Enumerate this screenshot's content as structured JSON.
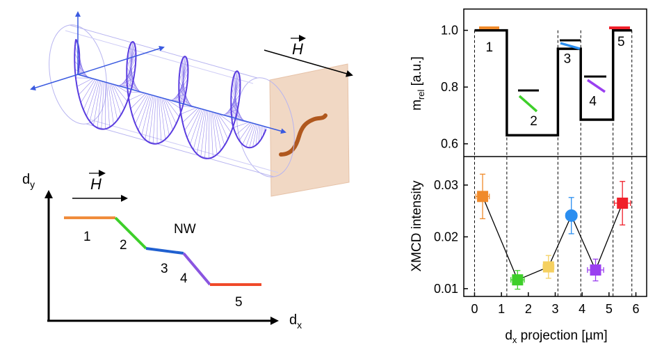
{
  "left_top": {
    "field_label": "H"
  },
  "left_bottom": {
    "y_axis_label": "d",
    "y_axis_sub": "y",
    "x_axis_label": "d",
    "x_axis_sub": "x",
    "field_label": "H",
    "nw_label": "NW",
    "segments": [
      {
        "label": "1",
        "color": "#f08c3c"
      },
      {
        "label": "2",
        "color": "#3ecf2a"
      },
      {
        "label": "3",
        "color": "#2060d0"
      },
      {
        "label": "4",
        "color": "#8a55e0"
      },
      {
        "label": "5",
        "color": "#f04a2a"
      }
    ]
  },
  "chart_data": [
    {
      "type": "line",
      "ylabel_main": "m",
      "ylabel_sub": "rel",
      "ylabel_unit": " [a.u.]",
      "xlim": [
        -0.4,
        6.4
      ],
      "ylim": [
        0.555,
        1.075
      ],
      "yticks": [
        "0.6",
        "0.8",
        "1.0"
      ],
      "ytick_values": [
        0.6,
        0.8,
        1.0
      ],
      "step_x": [
        0,
        1.2,
        1.2,
        3.1,
        3.1,
        3.95,
        3.95,
        5.15,
        5.15,
        5.85
      ],
      "step_y": [
        1.0,
        1.0,
        0.63,
        0.63,
        0.935,
        0.935,
        0.685,
        0.685,
        1.0,
        1.0
      ],
      "region_labels": [
        "1",
        "2",
        "3",
        "4",
        "5"
      ],
      "region_label_x": [
        0.55,
        2.2,
        3.45,
        4.4,
        5.45
      ],
      "region_label_y": [
        0.925,
        0.665,
        0.885,
        0.735,
        0.945
      ],
      "boundaries_x": [
        0,
        1.2,
        3.1,
        3.95,
        5.15,
        5.85
      ]
    },
    {
      "type": "scatter",
      "ylabel": "XMCD intensity",
      "xlabel_main": "d",
      "xlabel_sub": "x",
      "xlabel_rest": "  projection [µm]",
      "xlim": [
        -0.4,
        6.4
      ],
      "ylim": [
        0.0085,
        0.0355
      ],
      "xticks": [
        "0",
        "1",
        "2",
        "3",
        "4",
        "5",
        "6"
      ],
      "xtick_values": [
        0,
        1,
        2,
        3,
        4,
        5,
        6
      ],
      "yticks": [
        "0.01",
        "0.02",
        "0.03"
      ],
      "ytick_values": [
        0.01,
        0.02,
        0.03
      ],
      "points": [
        {
          "x": 0.3,
          "y": 0.0278,
          "yerr": 0.0043,
          "xerr": 0.25,
          "color": "#f08a2a",
          "marker": "square"
        },
        {
          "x": 1.6,
          "y": 0.0117,
          "yerr": 0.0018,
          "xerr": 0.25,
          "color": "#3ecf2a",
          "marker": "square"
        },
        {
          "x": 2.75,
          "y": 0.0142,
          "yerr": 0.0022,
          "xerr": 0.2,
          "color": "#f5d060",
          "marker": "square"
        },
        {
          "x": 3.6,
          "y": 0.0241,
          "yerr": 0.0035,
          "xerr": 0.2,
          "color": "#2a8ef0",
          "marker": "circle"
        },
        {
          "x": 4.5,
          "y": 0.0136,
          "yerr": 0.0021,
          "xerr": 0.3,
          "color": "#9a3ff0",
          "marker": "square"
        },
        {
          "x": 5.5,
          "y": 0.0265,
          "yerr": 0.0042,
          "xerr": 0.3,
          "color": "#f0202a",
          "marker": "square"
        }
      ]
    }
  ]
}
